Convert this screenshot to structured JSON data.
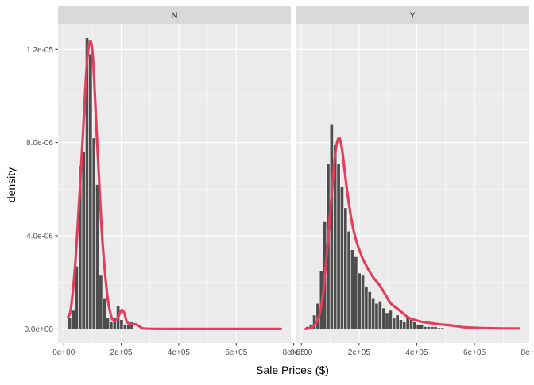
{
  "chart_data": {
    "type": "histogram-density-facet",
    "xlabel": "Sale Prices ($)",
    "ylabel": "density",
    "x_ticks": [
      "0e+00",
      "2e+05",
      "4e+05",
      "6e+05",
      "8e+05"
    ],
    "x_tick_values": [
      0,
      200000,
      400000,
      600000,
      800000
    ],
    "y_ticks": [
      "0.0e+00",
      "4.0e-06",
      "8.0e-06",
      "1.2e-05"
    ],
    "y_tick_values": [
      0,
      4e-06,
      8e-06,
      1.2e-05
    ],
    "xlim": [
      -20000,
      790000
    ],
    "ylim": [
      -6e-07,
      1.31e-05
    ],
    "colors": {
      "panel_bg": "#ebebeb",
      "strip_bg": "#d9d9d9",
      "grid_major": "#ffffff",
      "bar_fill": "#4d4d4d",
      "bar_outline": "#ffffff",
      "density_line": "#e0405e",
      "axis_text": "#4d4d4d",
      "title_text": "#000000"
    },
    "bin_start": 15000,
    "bin_width": 12000,
    "panels": [
      {
        "label": "N",
        "bin_densities": [
          5e-07,
          8e-07,
          2.7e-06,
          7e-06,
          7.6e-06,
          1.25e-05,
          1.18e-05,
          8.2e-06,
          6.2e-06,
          2.3e-06,
          1.3e-06,
          5e-07,
          3e-07,
          5e-07,
          1e-06,
          4e-07,
          2e-07,
          2e-07,
          3e-07
        ],
        "density_x": [
          15000,
          25000,
          40000,
          55000,
          70000,
          80000,
          90000,
          98000,
          105000,
          115000,
          125000,
          135000,
          150000,
          160000,
          170000,
          185000,
          200000,
          210000,
          220000,
          235000,
          250000,
          265000,
          280000,
          350000,
          450000,
          550000,
          650000,
          755000
        ],
        "density_y": [
          5e-07,
          9e-07,
          2.8e-06,
          5.8e-06,
          9.1e-06,
          1.13e-05,
          1.23e-05,
          1.21e-05,
          1.09e-05,
          8.3e-06,
          5.9e-06,
          3.7e-06,
          1.6e-06,
          8e-07,
          4e-07,
          4e-07,
          8e-07,
          7e-07,
          3e-07,
          2e-07,
          2e-07,
          1e-07,
          2e-08,
          0,
          0,
          0,
          0,
          0
        ]
      },
      {
        "label": "Y",
        "bin_densities": [
          1e-07,
          2e-07,
          6e-07,
          1.1e-06,
          2.5e-06,
          4.6e-06,
          7.1e-06,
          8.8e-06,
          7.9e-06,
          7.1e-06,
          6.1e-06,
          5.2e-06,
          4.2e-06,
          3.4e-06,
          3.1e-06,
          2.4e-06,
          2.3e-06,
          1.8e-06,
          1.6e-06,
          1.3e-06,
          1.1e-06,
          1.2e-06,
          9e-07,
          7e-07,
          8e-07,
          5e-07,
          6e-07,
          4e-07,
          3e-07,
          5e-07,
          4e-07,
          3e-07,
          2e-07,
          2e-07,
          1e-07,
          1e-07,
          1e-07,
          1e-07,
          5e-08,
          5e-08
        ],
        "density_x": [
          15000,
          40000,
          60000,
          75000,
          90000,
          105000,
          118000,
          130000,
          140000,
          150000,
          160000,
          175000,
          190000,
          210000,
          230000,
          250000,
          270000,
          290000,
          310000,
          330000,
          350000,
          370000,
          390000,
          420000,
          450000,
          480000,
          520000,
          560000,
          600000,
          650000,
          700000,
          755000
        ],
        "density_y": [
          0,
          1e-07,
          5e-07,
          1.5e-06,
          3.5e-06,
          5.8e-06,
          7.6e-06,
          8.2e-06,
          7.8e-06,
          6.8e-06,
          5.8e-06,
          4.6e-06,
          3.8e-06,
          3.1e-06,
          2.6e-06,
          2.2e-06,
          1.9e-06,
          1.5e-06,
          1.1e-06,
          9e-07,
          7e-07,
          5e-07,
          4e-07,
          3e-07,
          2.5e-07,
          2e-07,
          1.5e-07,
          8e-08,
          5e-08,
          3e-08,
          2e-08,
          2e-08
        ]
      }
    ]
  }
}
